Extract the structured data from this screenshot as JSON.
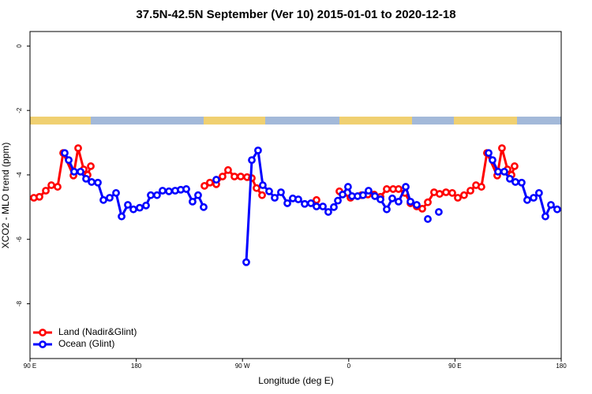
{
  "chart_data": {
    "type": "line",
    "title": "37.5N-42.5N September (Ver 10)   2015-01-01 to 2020-12-18",
    "x_label": "Longitude (deg E)",
    "y_label": "XCO2 - MLO trend (ppm)",
    "xlim": [
      90,
      540
    ],
    "xticks": [
      {
        "value": 90,
        "label": "90 E"
      },
      {
        "value": 180,
        "label": "180"
      },
      {
        "value": 270,
        "label": "90 W"
      },
      {
        "value": 360,
        "label": "0"
      },
      {
        "value": 450,
        "label": "90 E"
      },
      {
        "value": 540,
        "label": "180"
      }
    ],
    "ylim": [
      -9.7,
      0.45
    ],
    "yticks": [
      0,
      -2,
      -4,
      -6,
      -8
    ],
    "legend": "bottom-left",
    "series": [
      {
        "name": "Land (Nadir&Glint)",
        "color": "#ff0000",
        "x": [
          93.3,
          98.0,
          103.4,
          108.1,
          113.4,
          118.1,
          126.8,
          130.8,
          135.5,
          138.8,
          141.5,
          null,
          237.8,
          242.4,
          247.8,
          253.1,
          257.8,
          263.2,
          268.5,
          273.9,
          277.9,
          281.9,
          286.6,
          null,
          332.7,
          null,
          352.1,
          361.5,
          370.8,
          376.2,
          381.5,
          386.9,
          392.2,
          397.6,
          402.2,
          407.6,
          412.3,
          417.6,
          422.3,
          427.0,
          432.3,
          437.0,
          442.4,
          447.7,
          452.4,
          457.7,
          463.1,
          467.8,
          472.4,
          477.1,
          485.8,
          489.8,
          494.5,
          497.9,
          500.5
        ],
        "values": [
          -4.71,
          -4.68,
          -4.49,
          -4.32,
          -4.37,
          -3.32,
          -4.02,
          -3.17,
          -3.83,
          -4.0,
          -3.73,
          null,
          -4.34,
          -4.24,
          -4.29,
          -4.05,
          -3.85,
          -4.05,
          -4.05,
          -4.07,
          -4.1,
          -4.41,
          -4.63,
          null,
          -4.78,
          null,
          -4.51,
          -4.71,
          -4.63,
          -4.61,
          -4.61,
          -4.68,
          -4.44,
          -4.44,
          -4.44,
          -4.56,
          -4.88,
          -4.98,
          -5.05,
          -4.85,
          -4.54,
          -4.59,
          -4.54,
          -4.56,
          -4.71,
          -4.63,
          -4.49,
          -4.32,
          -4.37,
          -3.32,
          -4.02,
          -3.17,
          -3.83,
          -4.0,
          -3.73
        ]
      },
      {
        "name": "Ocean (Glint)",
        "color": "#0000ff",
        "x": [
          119.4,
          122.8,
          127.4,
          132.8,
          137.5,
          142.2,
          147.5,
          152.2,
          157.5,
          162.9,
          167.6,
          172.9,
          177.6,
          182.9,
          188.3,
          192.3,
          197.6,
          202.3,
          207.7,
          213.0,
          217.7,
          222.4,
          227.7,
          232.4,
          237.1,
          null,
          247.8,
          null,
          273.2,
          277.9,
          283.2,
          287.2,
          292.6,
          297.3,
          302.6,
          308.0,
          312.6,
          317.3,
          322.7,
          328.0,
          332.7,
          338.1,
          342.7,
          347.4,
          350.8,
          354.8,
          359.4,
          362.8,
          367.5,
          372.1,
          376.8,
          382.2,
          386.9,
          392.2,
          396.9,
          402.2,
          408.3,
          412.3,
          417.6,
          null,
          427.0,
          null,
          436.3,
          null,
          478.5,
          481.8,
          486.5,
          491.8,
          496.5,
          501.2,
          506.5,
          511.2,
          516.6,
          521.2,
          526.6,
          531.3,
          536.6
        ],
        "values": [
          -3.32,
          -3.54,
          -3.9,
          -3.9,
          -4.12,
          -4.22,
          -4.24,
          -4.78,
          -4.71,
          -4.56,
          -5.29,
          -4.93,
          -5.07,
          -5.02,
          -4.95,
          -4.63,
          -4.63,
          -4.49,
          -4.51,
          -4.49,
          -4.46,
          -4.44,
          -4.83,
          -4.63,
          -5.0,
          null,
          -4.15,
          null,
          -6.71,
          -3.54,
          -3.24,
          -4.32,
          -4.51,
          -4.71,
          -4.54,
          -4.88,
          -4.73,
          -4.76,
          -4.9,
          -4.88,
          -4.98,
          -4.98,
          -5.15,
          -5.0,
          -4.8,
          -4.61,
          -4.37,
          -4.66,
          -4.66,
          -4.63,
          -4.49,
          -4.66,
          -4.76,
          -5.07,
          -4.73,
          -4.83,
          -4.37,
          -4.83,
          -4.93,
          null,
          -5.37,
          null,
          -5.15,
          null,
          -3.32,
          -3.54,
          -3.9,
          -3.9,
          -4.12,
          -4.22,
          -4.24,
          -4.78,
          -4.71,
          -4.56,
          -5.29,
          -4.93,
          -5.07
        ]
      }
    ]
  }
}
